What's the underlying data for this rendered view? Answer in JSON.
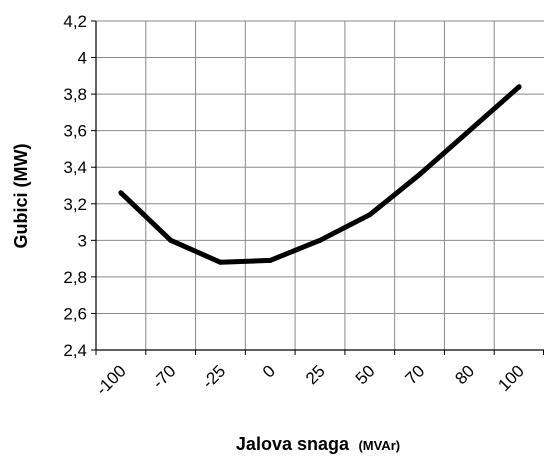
{
  "chart_data": {
    "type": "line",
    "categories": [
      "-100",
      "-70",
      "-25",
      "0",
      "25",
      "50",
      "70",
      "80",
      "100"
    ],
    "series": [
      {
        "values": [
          3.26,
          3.0,
          2.88,
          2.89,
          3.0,
          3.14,
          3.36,
          3.6,
          3.84
        ]
      }
    ],
    "xlabel": "Jalova snaga",
    "xlabel_unit": "(MVAr)",
    "ylabel": "Gubici (MW)",
    "ylim": [
      2.4,
      4.2
    ],
    "yticks": [
      "2,4",
      "2,6",
      "2,8",
      "3",
      "3,2",
      "3,4",
      "3,6",
      "3,8",
      "4",
      "4,2"
    ],
    "grid": true,
    "legend": "none",
    "line_color": "#000000",
    "grid_color": "#8a8a8a"
  }
}
